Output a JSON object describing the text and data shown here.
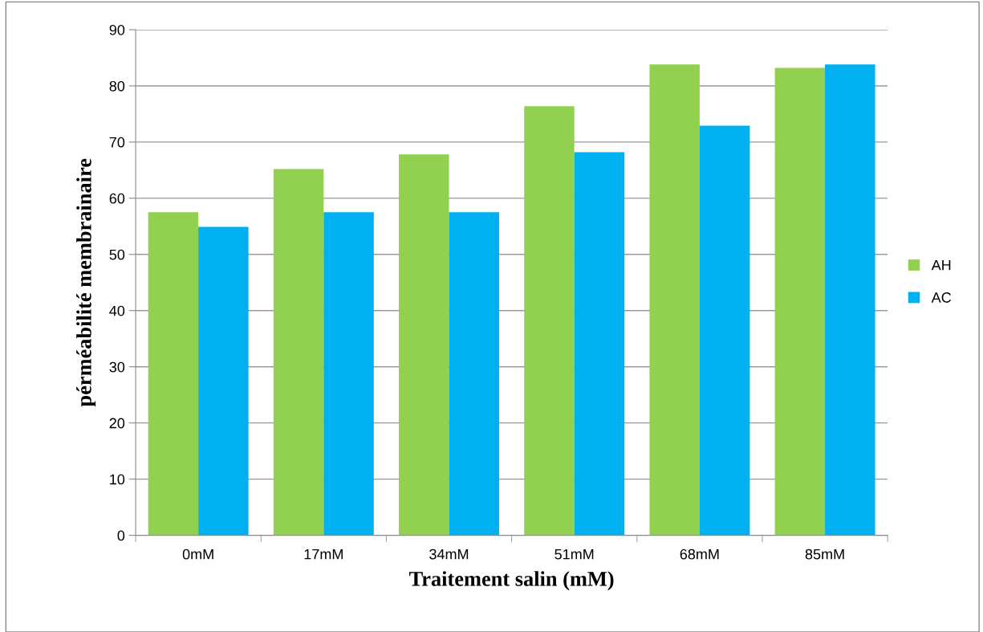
{
  "chart_data": {
    "type": "bar",
    "xlabel": "Traitement salin (mM)",
    "ylabel": "pérméabilité membrainaire",
    "categories": [
      "0mM",
      "17mM",
      "34mM",
      "51mM",
      "68mM",
      "85mM"
    ],
    "series": [
      {
        "name": "AH",
        "color": "#92d050",
        "values": [
          57.5,
          65.2,
          67.8,
          76.4,
          83.8,
          83.2
        ]
      },
      {
        "name": "AC",
        "color": "#00b0f0",
        "values": [
          54.9,
          57.5,
          57.5,
          68.2,
          72.9,
          83.8
        ]
      }
    ],
    "ylim": [
      0,
      90
    ],
    "yticks": [
      0,
      10,
      20,
      30,
      40,
      50,
      60,
      70,
      80,
      90
    ],
    "grid": "y",
    "legend": "right"
  }
}
